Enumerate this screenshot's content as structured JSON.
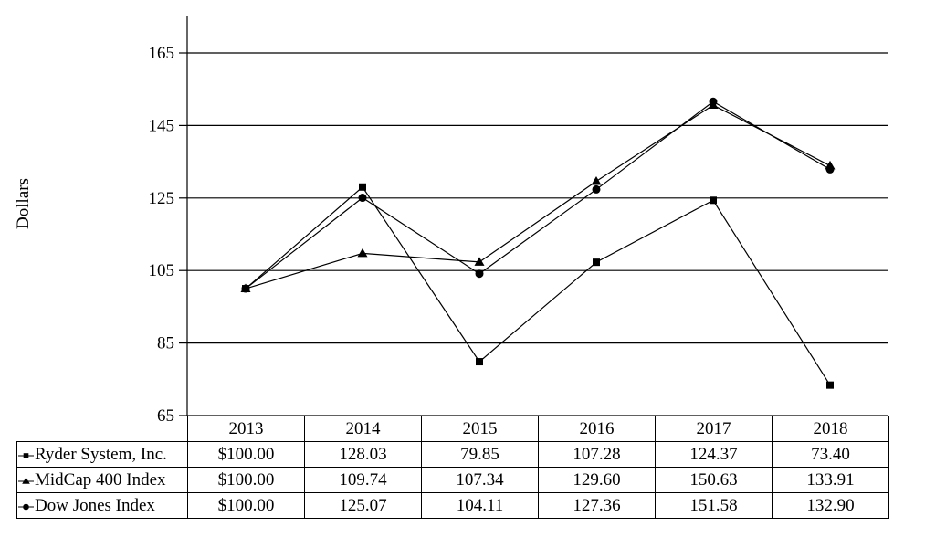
{
  "figure": {
    "ylabel": "Dollars"
  },
  "chart_data": {
    "type": "line",
    "title": "",
    "xlabel": "",
    "ylabel": "Dollars",
    "categories": [
      "2013",
      "2014",
      "2015",
      "2016",
      "2017",
      "2018"
    ],
    "yticks": [
      165,
      145,
      125,
      105,
      85,
      65
    ],
    "ylim": [
      65,
      165
    ],
    "grid": "horizontal",
    "legend_position": "table-left",
    "series": [
      {
        "name": "Ryder System, Inc.",
        "marker": "square",
        "color": "#000000",
        "values": [
          100.0,
          128.03,
          79.85,
          107.28,
          124.37,
          73.4
        ]
      },
      {
        "name": "MidCap 400 Index",
        "marker": "triangle",
        "color": "#000000",
        "values": [
          100.0,
          109.74,
          107.34,
          129.6,
          150.63,
          133.91
        ]
      },
      {
        "name": "Dow Jones Index",
        "marker": "circle",
        "color": "#000000",
        "values": [
          100.0,
          125.07,
          104.11,
          127.36,
          151.58,
          132.9
        ]
      }
    ]
  },
  "table": {
    "years": [
      "2013",
      "2014",
      "2015",
      "2016",
      "2017",
      "2018"
    ],
    "rows": [
      {
        "label": "Ryder System, Inc.",
        "values": [
          "$100.00",
          "128.03",
          "79.85",
          "107.28",
          "124.37",
          "73.40"
        ]
      },
      {
        "label": "MidCap 400 Index",
        "values": [
          "$100.00",
          "109.74",
          "107.34",
          "129.60",
          "150.63",
          "133.91"
        ]
      },
      {
        "label": "Dow Jones Index",
        "values": [
          "$100.00",
          "125.07",
          "104.11",
          "127.36",
          "151.58",
          "132.90"
        ]
      }
    ]
  },
  "colors": {
    "line": "#000000",
    "marker": "#000000",
    "grid": "#000000",
    "background": "#ffffff"
  }
}
